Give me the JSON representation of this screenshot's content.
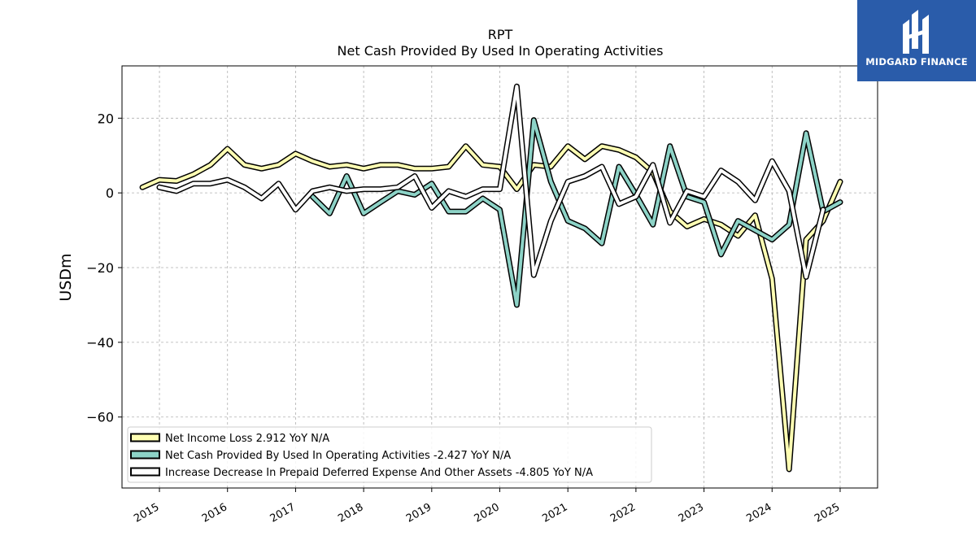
{
  "chart_data": {
    "type": "line",
    "title": "RPT",
    "subtitle": "Net Cash Provided By Used In Operating Activities",
    "ylabel": "USDm",
    "xlabel": "",
    "xlim": [
      2014.45,
      2025.55
    ],
    "ylim": [
      -79,
      34
    ],
    "x_ticks": [
      "2015",
      "2016",
      "2017",
      "2018",
      "2019",
      "2020",
      "2021",
      "2022",
      "2023",
      "2024",
      "2025"
    ],
    "y_ticks": [
      20,
      0,
      -20,
      -40,
      -60
    ],
    "y_tick_labels": [
      "20",
      "0",
      "−20",
      "−40",
      "−60"
    ],
    "grid": true,
    "legend_position": "lower-left",
    "x": [
      2014.75,
      2015.0,
      2015.25,
      2015.5,
      2015.75,
      2016.0,
      2016.25,
      2016.5,
      2016.75,
      2017.0,
      2017.25,
      2017.5,
      2017.75,
      2018.0,
      2018.25,
      2018.5,
      2018.75,
      2019.0,
      2019.25,
      2019.5,
      2019.75,
      2020.0,
      2020.25,
      2020.5,
      2020.75,
      2021.0,
      2021.25,
      2021.5,
      2021.75,
      2022.0,
      2022.25,
      2022.5,
      2022.75,
      2023.0,
      2023.25,
      2023.5,
      2023.75,
      2024.0,
      2024.25,
      2024.5,
      2024.75,
      2025.0
    ],
    "series": [
      {
        "name": "Net Income Loss",
        "legend_label": "Net Income Loss  2.912 YoY N/A",
        "color": "#ffffb3",
        "values": [
          1.5,
          3.5,
          3.2,
          5.0,
          7.5,
          11.8,
          7.5,
          6.5,
          7.5,
          10.5,
          8.5,
          7.0,
          7.5,
          6.5,
          7.5,
          7.5,
          6.5,
          6.5,
          7.0,
          12.5,
          7.5,
          7.0,
          1.0,
          7.5,
          7.0,
          12.5,
          9.0,
          12.5,
          11.5,
          9.5,
          5.5,
          -5.0,
          -9.0,
          -7.0,
          -8.5,
          -11.5,
          -6.0,
          -23.0,
          -74.0,
          -12.5,
          -7.5,
          3.0
        ]
      },
      {
        "name": "Net Cash Provided By Used In Operating Activities",
        "legend_label": "Net Cash Provided By Used In Operating Activities  -2.427 YoY N/A",
        "color": "#8dd3c7",
        "values": [
          null,
          null,
          null,
          null,
          null,
          null,
          null,
          null,
          null,
          null,
          -1.0,
          -5.5,
          4.5,
          -5.5,
          -2.5,
          0.5,
          -0.5,
          2.5,
          -5.0,
          -5.0,
          -1.5,
          -4.5,
          -30.0,
          19.5,
          3.0,
          -7.5,
          -9.5,
          -13.5,
          7.0,
          -0.5,
          -8.5,
          12.5,
          -1.0,
          -2.5,
          -16.5,
          -7.5,
          -10.0,
          -12.5,
          -8.5,
          16.0,
          -5.0,
          -2.5
        ]
      },
      {
        "name": "Increase Decrease In Prepaid Deferred Expense And Other Assets",
        "legend_label": "Increase Decrease In Prepaid Deferred Expense And Other Assets  -4.805 YoY N/A",
        "color": "#ffffff",
        "values": [
          null,
          1.5,
          0.5,
          2.5,
          2.5,
          3.5,
          1.5,
          -1.5,
          2.5,
          -4.5,
          0.5,
          1.5,
          0.5,
          1.0,
          1.0,
          1.5,
          4.5,
          -4.0,
          0.5,
          -1.0,
          1.0,
          1.0,
          28.5,
          -22.0,
          -7.5,
          3.0,
          4.5,
          7.0,
          -3.0,
          -1.0,
          7.5,
          -8.0,
          0.5,
          -1.0,
          6.0,
          3.0,
          -2.0,
          8.5,
          0.5,
          -22.5,
          -4.5,
          null
        ]
      }
    ]
  },
  "logo": {
    "text": "MIDGARD FINANCE",
    "background": "#2a5caa"
  }
}
